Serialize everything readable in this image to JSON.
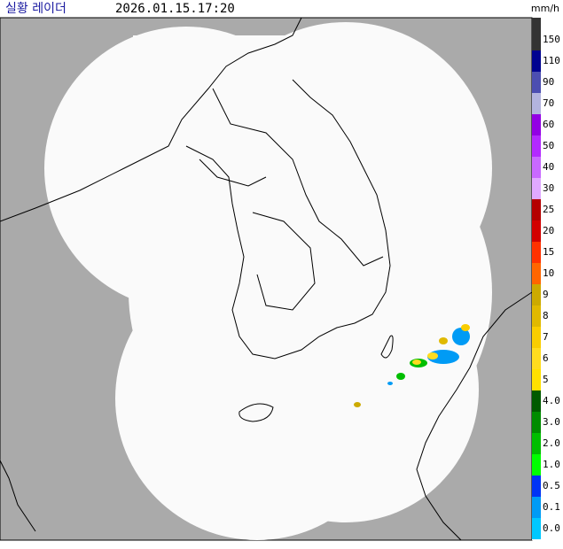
{
  "header": {
    "title": "실황 레이더",
    "time": "2026.01.15.17:20",
    "unit": "mm/h"
  },
  "legend": [
    {
      "label": "150",
      "color": "#333333"
    },
    {
      "label": "110",
      "color": "#000390"
    },
    {
      "label": "90",
      "color": "#4c4eb1"
    },
    {
      "label": "70",
      "color": "#b3b4de"
    },
    {
      "label": "60",
      "color": "#9300e4"
    },
    {
      "label": "50",
      "color": "#b329ff"
    },
    {
      "label": "40",
      "color": "#c969ff"
    },
    {
      "label": "30",
      "color": "#e0a9ff"
    },
    {
      "label": "25",
      "color": "#b40000"
    },
    {
      "label": "20",
      "color": "#d20000"
    },
    {
      "label": "15",
      "color": "#ff3200"
    },
    {
      "label": "10",
      "color": "#ff6600"
    },
    {
      "label": "9",
      "color": "#ccaa00"
    },
    {
      "label": "8",
      "color": "#e0b900"
    },
    {
      "label": "7",
      "color": "#f9cd00"
    },
    {
      "label": "6",
      "color": "#ffdc1f"
    },
    {
      "label": "5",
      "color": "#ffe100"
    },
    {
      "label": "4.0",
      "color": "#005a00"
    },
    {
      "label": "3.0",
      "color": "#008c00"
    },
    {
      "label": "2.0",
      "color": "#00be00"
    },
    {
      "label": "1.0",
      "color": "#00ff00"
    },
    {
      "label": "0.5",
      "color": "#0033f5"
    },
    {
      "label": "0.1",
      "color": "#009bf5"
    },
    {
      "label": "0.0",
      "color": "#00c8ff"
    }
  ]
}
